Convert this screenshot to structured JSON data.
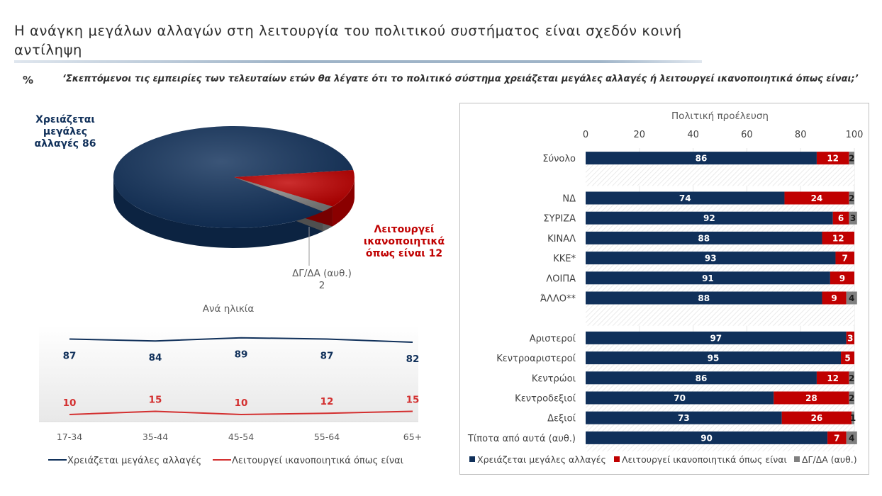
{
  "title": "Η ανάγκη μεγάλων αλλαγών στη λειτουργία του πολιτικού συστήματος είναι σχεδόν κοινή αντίληψη",
  "percent_symbol": "%",
  "question": "‘Σκεπτόμενοι τις εμπειρίες των τελευταίων ετών θα λέγατε ότι το πολιτικό σύστημα χρειάζεται μεγάλες αλλαγές ή λειτουργεί ικανοποιητικά όπως είναι;’",
  "colors": {
    "navy": "#10305a",
    "red": "#c00000",
    "gray": "#7f7f7f",
    "redLine": "#d32f2f"
  },
  "chart_data": [
    {
      "type": "pie",
      "slices": [
        {
          "label_lines": [
            "Χρειάζεται",
            "μεγάλες",
            "αλλαγές 86"
          ],
          "value": 86,
          "color": "#10305a"
        },
        {
          "label_lines": [
            "Λειτουργεί",
            "ικανοποιητικά",
            "όπως είναι 12"
          ],
          "value": 12,
          "color": "#c00000"
        },
        {
          "label_lines": [
            "ΔΓ/ΔΑ (αυθ.)",
            "2"
          ],
          "value": 2,
          "color": "#808080"
        }
      ]
    },
    {
      "type": "line",
      "title": "Ανά ηλικία",
      "categories": [
        "17-34",
        "35-44",
        "45-54",
        "55-64",
        "65+"
      ],
      "series": [
        {
          "name": "Χρειάζεται μεγάλες αλλαγές",
          "values": [
            87,
            84,
            89,
            87,
            82
          ],
          "color": "#10305a"
        },
        {
          "name": "Λειτουργεί ικανοποιητικά όπως είναι",
          "values": [
            10,
            15,
            10,
            12,
            15
          ],
          "color": "#d32f2f"
        }
      ],
      "ylim": [
        0,
        100
      ]
    },
    {
      "type": "bar",
      "orientation": "horizontal",
      "stacked": true,
      "title": "Πολιτική προέλευση",
      "xlim": [
        0,
        100
      ],
      "ticks": [
        "0",
        "20",
        "40",
        "60",
        "80",
        "100"
      ],
      "rows": [
        {
          "label": "Σύνολο",
          "values": [
            86,
            12,
            2
          ]
        },
        {
          "label": "",
          "values": null
        },
        {
          "label": "ΝΔ",
          "values": [
            74,
            24,
            2
          ]
        },
        {
          "label": "ΣΥΡΙΖΑ",
          "values": [
            92,
            6,
            3
          ]
        },
        {
          "label": "ΚΙΝΑΛ",
          "values": [
            88,
            12,
            0
          ]
        },
        {
          "label": "ΚΚΕ*",
          "values": [
            93,
            7,
            0
          ]
        },
        {
          "label": "ΛΟΙΠΑ",
          "values": [
            91,
            9,
            0
          ]
        },
        {
          "label": "ΆΛΛΟ**",
          "values": [
            88,
            9,
            4
          ]
        },
        {
          "label": "",
          "values": null
        },
        {
          "label": "Αριστεροί",
          "values": [
            97,
            3,
            0
          ]
        },
        {
          "label": "Κεντροαριστεροί",
          "values": [
            95,
            5,
            0
          ]
        },
        {
          "label": "Κεντρώοι",
          "values": [
            86,
            12,
            2
          ]
        },
        {
          "label": "Κεντροδεξιοί",
          "values": [
            70,
            28,
            2
          ]
        },
        {
          "label": "Δεξιοί",
          "values": [
            73,
            26,
            1
          ]
        },
        {
          "label": "Τίποτα από αυτά (αυθ.)",
          "values": [
            90,
            7,
            4
          ]
        }
      ],
      "series": [
        {
          "name": "Χρειάζεται μεγάλες αλλαγές",
          "color": "#10305a"
        },
        {
          "name": "Λειτουργεί ικανοποιητικά όπως είναι",
          "color": "#c00000"
        },
        {
          "name": "ΔΓ/ΔΑ (αυθ.)",
          "color": "#808080"
        }
      ]
    }
  ]
}
